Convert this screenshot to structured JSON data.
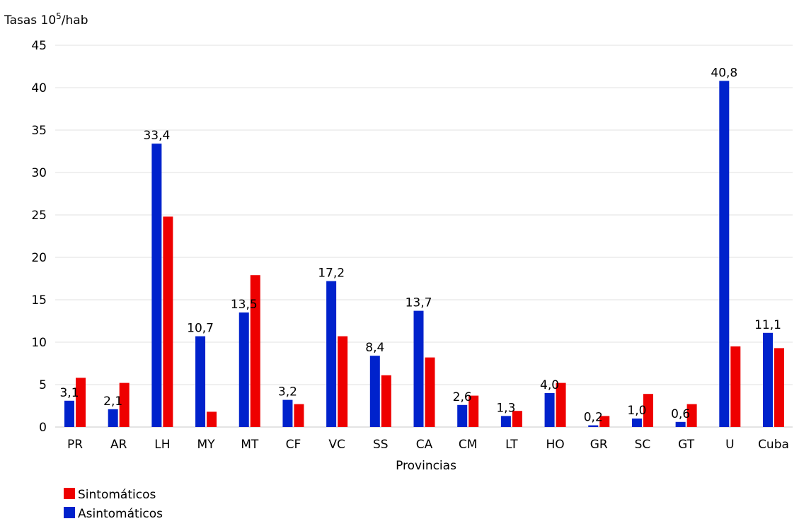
{
  "chart_data": {
    "type": "bar",
    "ylabel": "Tasas 10⁵/hab",
    "xlabel": "Provincias",
    "ylim": [
      0,
      45
    ],
    "yticks": [
      0,
      5,
      10,
      15,
      20,
      25,
      30,
      35,
      40,
      45
    ],
    "grid": true,
    "legend_position": "bottom-left",
    "categories": [
      "PR",
      "AR",
      "LH",
      "MY",
      "MT",
      "CF",
      "VC",
      "SS",
      "CA",
      "CM",
      "LT",
      "HO",
      "GR",
      "SC",
      "GT",
      "U",
      "Cuba"
    ],
    "series": [
      {
        "name": "Asintomáticos",
        "color": "#0022cc",
        "values": [
          3.1,
          2.1,
          33.4,
          10.7,
          13.5,
          3.2,
          17.2,
          8.4,
          13.7,
          2.6,
          1.3,
          4.0,
          0.2,
          1.0,
          0.6,
          40.8,
          11.1
        ],
        "labels": [
          "3,1",
          "2,1",
          "33,4",
          "10,7",
          "13,5",
          "3,2",
          "17,2",
          "8,4",
          "13,7",
          "2,6",
          "1,3",
          "4,0",
          "0,2",
          "1,0",
          "0,6",
          "40,8",
          "11,1"
        ]
      },
      {
        "name": "Sintomáticos",
        "color": "#ee0000",
        "values": [
          5.8,
          5.2,
          24.8,
          1.8,
          17.9,
          2.7,
          10.7,
          6.1,
          8.2,
          3.7,
          1.9,
          5.2,
          1.3,
          3.9,
          2.7,
          9.5,
          9.3
        ]
      }
    ],
    "legend": [
      {
        "name": "Sintomáticos",
        "color": "#ee0000"
      },
      {
        "name": "Asintomáticos",
        "color": "#0022cc"
      }
    ]
  }
}
